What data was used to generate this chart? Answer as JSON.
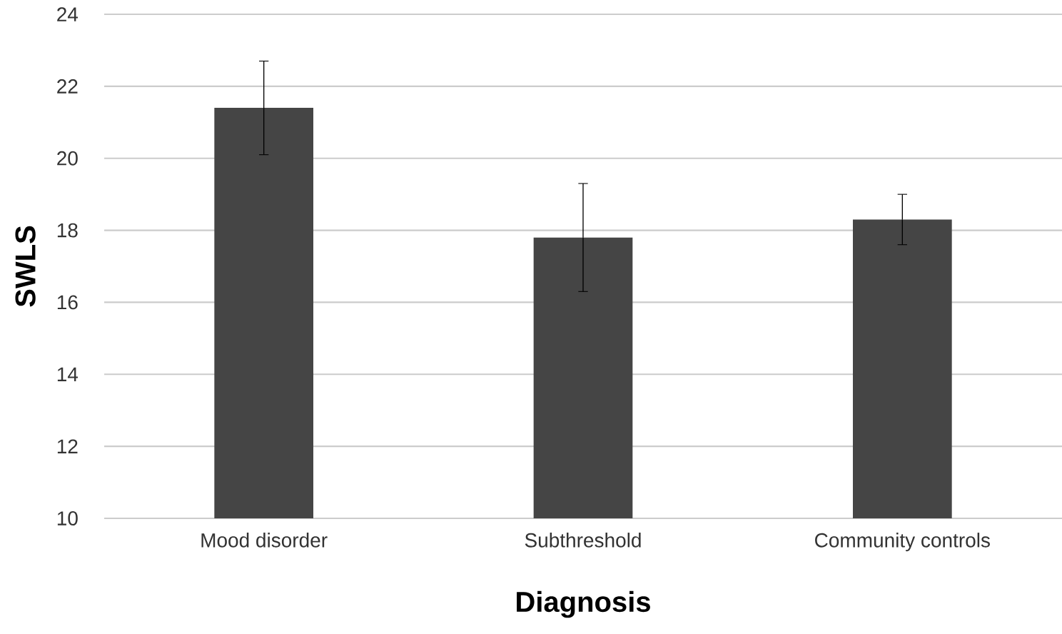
{
  "chart_data": {
    "type": "bar",
    "xlabel": "Diagnosis",
    "ylabel": "SWLS",
    "categories": [
      "Mood disorder",
      "Subthreshold",
      "Community controls"
    ],
    "values": [
      21.4,
      17.8,
      18.3
    ],
    "errors": [
      1.3,
      1.5,
      0.7
    ],
    "color": "#454545",
    "ylim": [
      10,
      24
    ],
    "yticks": [
      10,
      12,
      14,
      16,
      18,
      20,
      22,
      24
    ],
    "grid": "y"
  }
}
